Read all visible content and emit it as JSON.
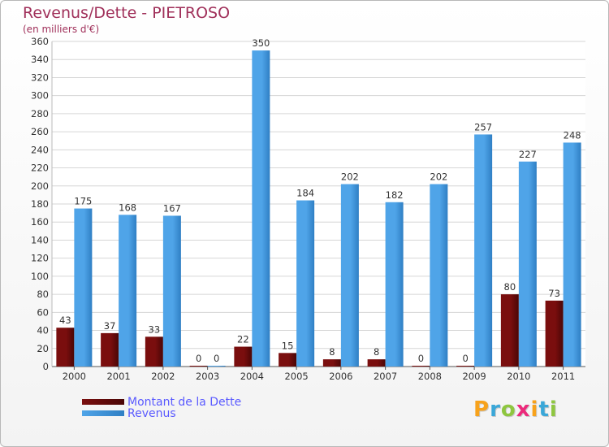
{
  "chart_data": {
    "type": "bar",
    "title": "Revenus/Dette - PIETROSO",
    "subtitle": "(en milliers d'€)",
    "categories": [
      "2000",
      "2001",
      "2002",
      "2003",
      "2004",
      "2005",
      "2006",
      "2007",
      "2008",
      "2009",
      "2010",
      "2011"
    ],
    "series": [
      {
        "name": "Montant de la Dette",
        "color": "#7a0e0e",
        "values": [
          43,
          37,
          33,
          0,
          22,
          15,
          8,
          8,
          0,
          0,
          80,
          73
        ]
      },
      {
        "name": "Revenus",
        "color": "#4fa4e8",
        "values": [
          175,
          168,
          167,
          0,
          350,
          184,
          202,
          182,
          202,
          257,
          227,
          248
        ]
      }
    ],
    "ylim": [
      0,
      360
    ],
    "yticks": [
      0,
      20,
      40,
      60,
      80,
      100,
      120,
      140,
      160,
      180,
      200,
      220,
      240,
      260,
      280,
      300,
      320,
      340,
      360
    ],
    "grid": true,
    "legend_position": "bottom-left"
  },
  "logo": {
    "letters": [
      "P",
      "r",
      "o",
      "x",
      "i",
      "t",
      "i"
    ],
    "colors": [
      "#f7a21b",
      "#3aa7d8",
      "#8ec63f",
      "#ec2a7b",
      "#f7a21b",
      "#3aa7d8",
      "#8ec63f"
    ]
  }
}
